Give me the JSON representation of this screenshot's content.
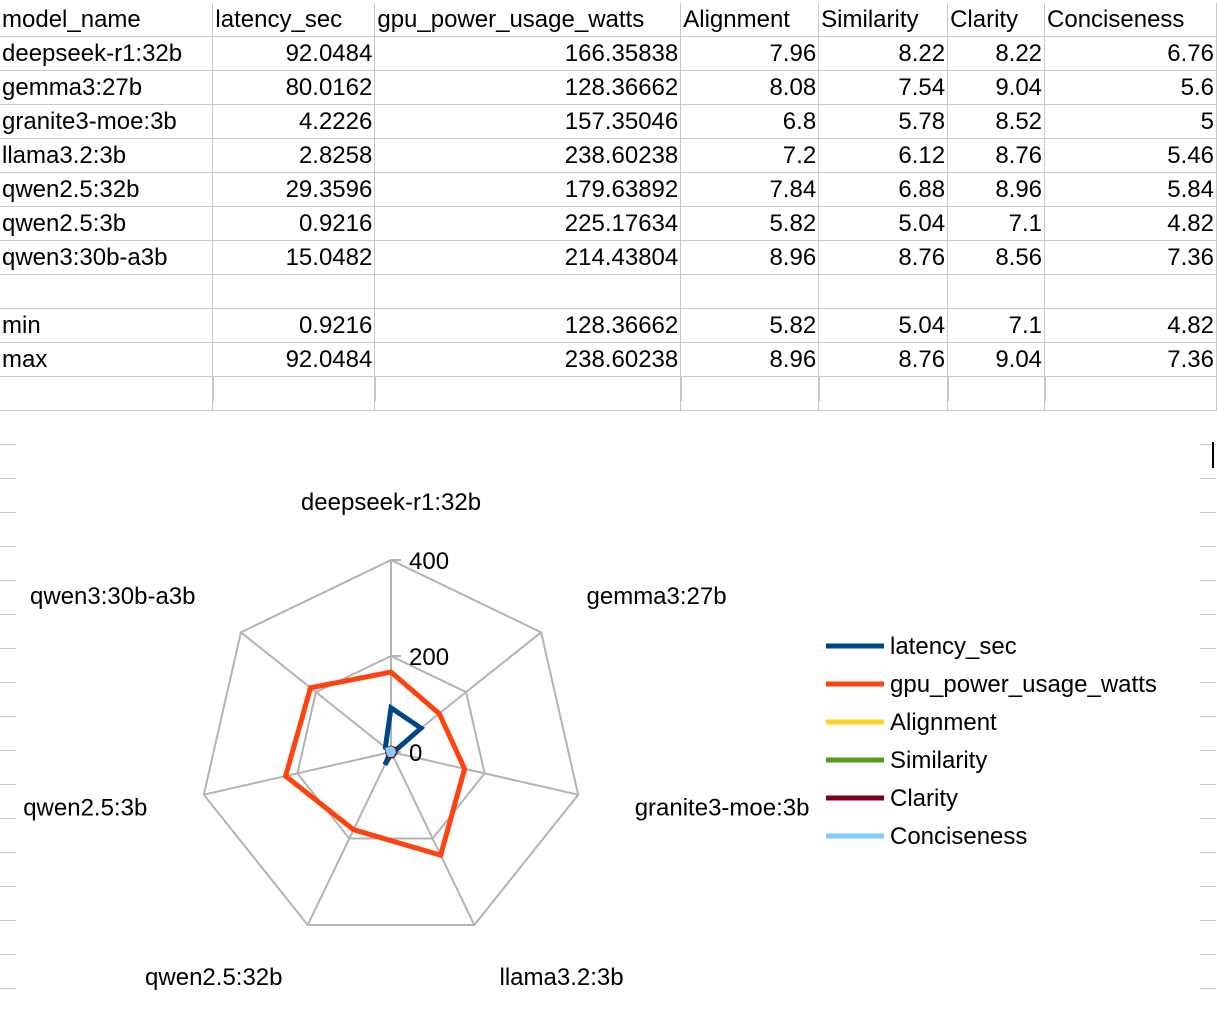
{
  "sheet": {
    "headers": [
      "model_name",
      "latency_sec",
      "gpu_power_usage_watts",
      "Alignment",
      "Similarity",
      "Clarity",
      "Conciseness"
    ],
    "rows": [
      [
        "deepseek-r1:32b",
        "92.0484",
        "166.35838",
        "7.96",
        "8.22",
        "8.22",
        "6.76"
      ],
      [
        "gemma3:27b",
        "80.0162",
        "128.36662",
        "8.08",
        "7.54",
        "9.04",
        "5.6"
      ],
      [
        "granite3-moe:3b",
        "4.2226",
        "157.35046",
        "6.8",
        "5.78",
        "8.52",
        "5"
      ],
      [
        "llama3.2:3b",
        "2.8258",
        "238.60238",
        "7.2",
        "6.12",
        "8.76",
        "5.46"
      ],
      [
        "qwen2.5:32b",
        "29.3596",
        "179.63892",
        "7.84",
        "6.88",
        "8.96",
        "5.84"
      ],
      [
        "qwen2.5:3b",
        "0.9216",
        "225.17634",
        "5.82",
        "5.04",
        "7.1",
        "4.82"
      ],
      [
        "qwen3:30b-a3b",
        "15.0482",
        "214.43804",
        "8.96",
        "8.76",
        "8.56",
        "7.36"
      ],
      [
        "",
        "",
        "",
        "",
        "",
        "",
        ""
      ],
      [
        "min",
        "0.9216",
        "128.36662",
        "5.82",
        "5.04",
        "7.1",
        "4.82"
      ],
      [
        "max",
        "92.0484",
        "238.60238",
        "8.96",
        "8.76",
        "9.04",
        "7.36"
      ]
    ]
  },
  "chart_data": {
    "type": "radar",
    "categories": [
      "deepseek-r1:32b",
      "gemma3:27b",
      "granite3-moe:3b",
      "llama3.2:3b",
      "qwen2.5:32b",
      "qwen2.5:3b",
      "qwen3:30b-a3b"
    ],
    "rlim": [
      0,
      400
    ],
    "ticks": [
      "0",
      "200",
      "400"
    ],
    "tick_values": [
      0,
      200,
      400
    ],
    "grid": true,
    "legend_position": "right",
    "series": [
      {
        "name": "latency_sec",
        "color": "#004586",
        "values": [
          92.0484,
          80.0162,
          4.2226,
          2.8258,
          29.3596,
          0.9216,
          15.0482
        ]
      },
      {
        "name": "gpu_power_usage_watts",
        "color": "#ff420e",
        "values": [
          166.35838,
          128.36662,
          157.35046,
          238.60238,
          179.63892,
          225.17634,
          214.43804
        ]
      },
      {
        "name": "Alignment",
        "color": "#ffd320",
        "values": [
          7.96,
          8.08,
          6.8,
          7.2,
          7.84,
          5.82,
          8.96
        ]
      },
      {
        "name": "Similarity",
        "color": "#579d1c",
        "values": [
          8.22,
          7.54,
          5.78,
          6.12,
          6.88,
          5.04,
          8.76
        ]
      },
      {
        "name": "Clarity",
        "color": "#7e0021",
        "values": [
          8.22,
          9.04,
          8.52,
          8.76,
          8.96,
          7.1,
          8.56
        ]
      },
      {
        "name": "Conciseness",
        "color": "#83caff",
        "values": [
          6.76,
          5.6,
          5,
          5.46,
          5.84,
          4.82,
          7.36
        ]
      }
    ]
  }
}
